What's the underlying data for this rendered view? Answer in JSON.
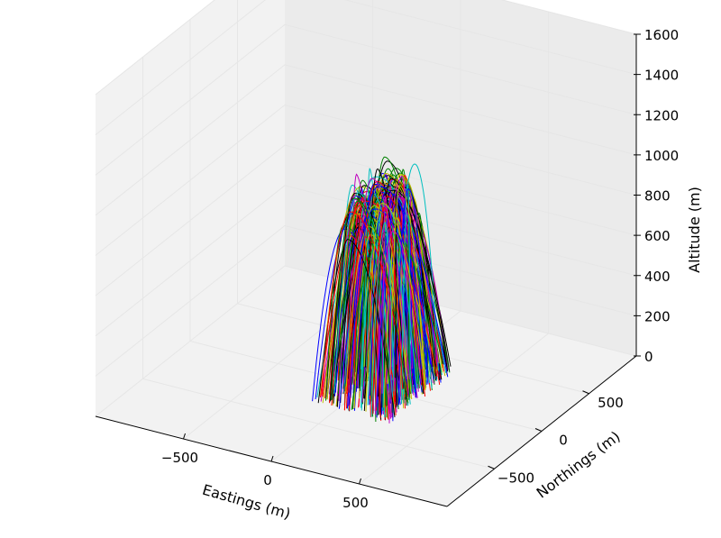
{
  "chart_data": {
    "type": "line",
    "projection": "3d",
    "title": "",
    "xlabel": "Eastings (m)",
    "ylabel": "Northings (m)",
    "zlabel": "Altitude (m)",
    "xlim": [
      -1000,
      1000
    ],
    "ylim": [
      -1000,
      1000
    ],
    "zlim": [
      0,
      1600
    ],
    "xticks": [
      {
        "value": -500,
        "label": "−500"
      },
      {
        "value": 0,
        "label": "0"
      },
      {
        "value": 500,
        "label": "500"
      }
    ],
    "yticks": [
      {
        "value": -500,
        "label": "−500"
      },
      {
        "value": 0,
        "label": "0"
      },
      {
        "value": 500,
        "label": "500"
      }
    ],
    "zticks": [
      {
        "value": 0,
        "label": "0"
      },
      {
        "value": 200,
        "label": "200"
      },
      {
        "value": 400,
        "label": "400"
      },
      {
        "value": 600,
        "label": "600"
      },
      {
        "value": 800,
        "label": "800"
      },
      {
        "value": 1000,
        "label": "1000"
      },
      {
        "value": 1200,
        "label": "1200"
      },
      {
        "value": 1400,
        "label": "1400"
      },
      {
        "value": 1600,
        "label": "1600"
      }
    ],
    "grid": true,
    "series_colors": [
      "#0000ff",
      "#008000",
      "#ff0000",
      "#00bfbf",
      "#bf00bf",
      "#bfbf00",
      "#000000"
    ],
    "trajectory_summary": {
      "count": 300,
      "launch_eastings_range": [
        -150,
        150
      ],
      "launch_northings_range": [
        -300,
        300
      ],
      "apex_altitude_range": [
        700,
        1060
      ],
      "landing_eastings_range": [
        200,
        320
      ],
      "landing_northings_range": [
        -350,
        350
      ]
    }
  }
}
